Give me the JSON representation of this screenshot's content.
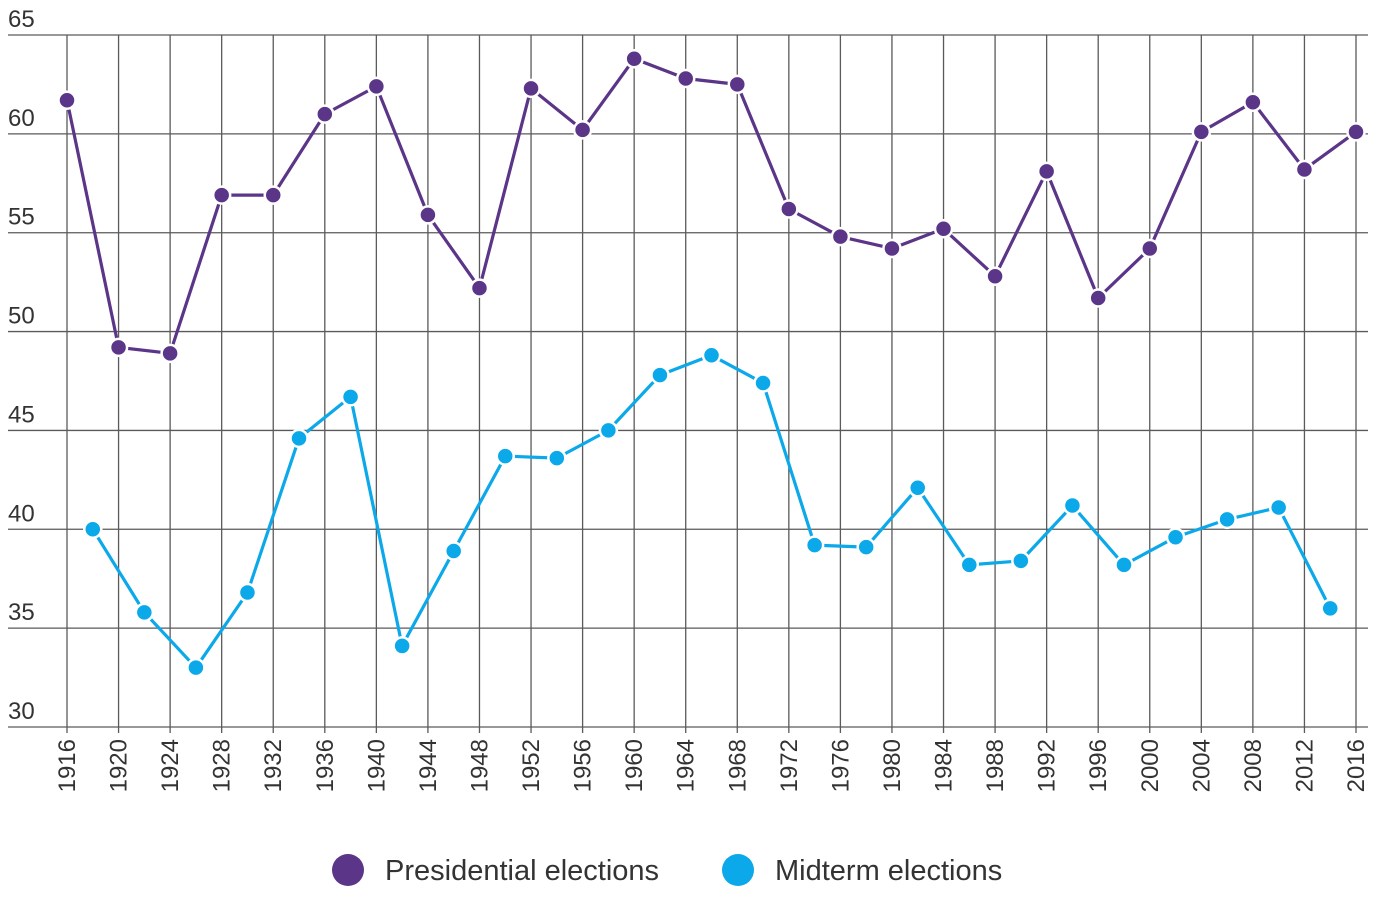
{
  "colors": {
    "presidential": "#5b3588",
    "midterm": "#0ba8ea",
    "grid": "#5a5a5a"
  },
  "chart_data": {
    "type": "line",
    "title": "",
    "xlabel": "",
    "ylabel": "",
    "xlim": [
      1916,
      2016
    ],
    "ylim": [
      30,
      65
    ],
    "x_ticks": [
      1916,
      1920,
      1924,
      1928,
      1932,
      1936,
      1940,
      1944,
      1948,
      1952,
      1956,
      1960,
      1964,
      1968,
      1972,
      1976,
      1980,
      1984,
      1988,
      1992,
      1996,
      2000,
      2004,
      2008,
      2012,
      2016
    ],
    "y_ticks": [
      30,
      35,
      40,
      45,
      50,
      55,
      60,
      65
    ],
    "grid": true,
    "legend": "bottom-center",
    "series": [
      {
        "name": "Presidential elections",
        "color": "#5b3588",
        "x": [
          1916,
          1920,
          1924,
          1928,
          1932,
          1936,
          1940,
          1944,
          1948,
          1952,
          1956,
          1960,
          1964,
          1968,
          1972,
          1976,
          1980,
          1984,
          1988,
          1992,
          1996,
          2000,
          2004,
          2008,
          2012,
          2016
        ],
        "values": [
          61.7,
          49.2,
          48.9,
          56.9,
          56.9,
          61.0,
          62.4,
          55.9,
          52.2,
          62.3,
          60.2,
          63.8,
          62.8,
          62.5,
          56.2,
          54.8,
          54.2,
          55.2,
          52.8,
          58.1,
          51.7,
          54.2,
          60.1,
          61.6,
          58.2,
          60.1
        ]
      },
      {
        "name": "Midterm elections",
        "color": "#0ba8ea",
        "x": [
          1918,
          1922,
          1926,
          1930,
          1934,
          1938,
          1942,
          1946,
          1950,
          1954,
          1958,
          1962,
          1966,
          1970,
          1974,
          1978,
          1982,
          1986,
          1990,
          1994,
          1998,
          2002,
          2006,
          2010,
          2014
        ],
        "values": [
          40.0,
          35.8,
          33.0,
          36.8,
          44.6,
          46.7,
          34.1,
          38.9,
          43.7,
          43.6,
          45.0,
          47.8,
          48.8,
          47.4,
          39.2,
          39.1,
          42.1,
          38.2,
          38.4,
          41.2,
          38.2,
          39.6,
          40.5,
          41.1,
          36.0
        ]
      }
    ]
  }
}
